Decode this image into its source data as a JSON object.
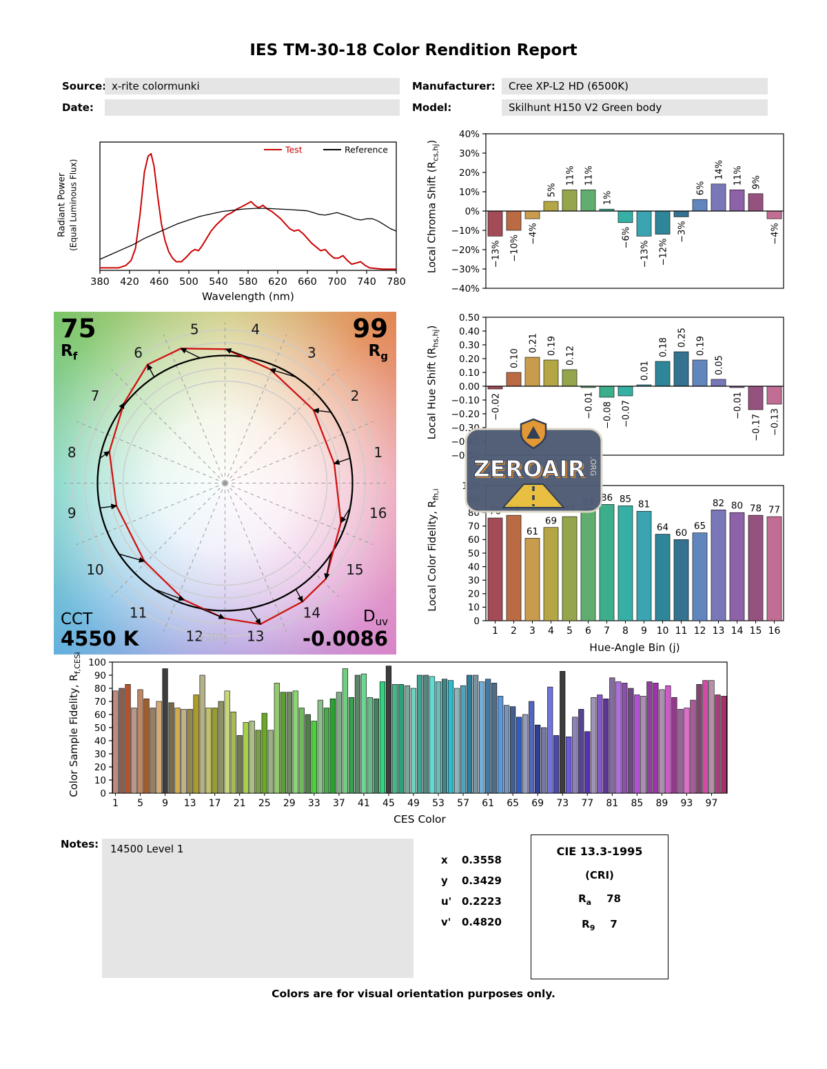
{
  "title": "IES TM-30-18 Color Rendition Report",
  "header": {
    "source_label": "Source:",
    "source_value": "x-rite colormunki",
    "date_label": "Date:",
    "date_value": "",
    "manufacturer_label": "Manufacturer:",
    "manufacturer_value": "Cree XP-L2 HD (6500K)",
    "model_label": "Model:",
    "model_value": "Skilhunt H150 V2 Green body"
  },
  "bin_colors": [
    "#a34b57",
    "#bb6b43",
    "#c89b4d",
    "#b4a545",
    "#94a54b",
    "#5fae70",
    "#3dae8c",
    "#36b0a4",
    "#3aa5b0",
    "#2f8699",
    "#33738f",
    "#6086bd",
    "#7a77b8",
    "#8e62a8",
    "#96527f",
    "#c26d93"
  ],
  "chart_data": [
    {
      "id": "spd",
      "type": "line",
      "xlabel": "Wavelength (nm)",
      "ylabel1": "Radiant Power",
      "ylabel2": "(Equal Luminous Flux)",
      "xlim": [
        380,
        780
      ],
      "xticks": [
        380,
        420,
        460,
        500,
        540,
        580,
        620,
        660,
        700,
        740,
        780
      ],
      "series": [
        {
          "name": "Test",
          "color": "#cc0000",
          "width": 2,
          "points": [
            [
              380,
              0.02
            ],
            [
              395,
              0.02
            ],
            [
              405,
              0.02
            ],
            [
              415,
              0.04
            ],
            [
              422,
              0.08
            ],
            [
              428,
              0.18
            ],
            [
              434,
              0.45
            ],
            [
              440,
              0.8
            ],
            [
              445,
              0.93
            ],
            [
              449,
              0.95
            ],
            [
              453,
              0.85
            ],
            [
              458,
              0.6
            ],
            [
              463,
              0.38
            ],
            [
              468,
              0.24
            ],
            [
              473,
              0.15
            ],
            [
              478,
              0.1
            ],
            [
              483,
              0.07
            ],
            [
              490,
              0.07
            ],
            [
              497,
              0.11
            ],
            [
              503,
              0.15
            ],
            [
              508,
              0.17
            ],
            [
              513,
              0.16
            ],
            [
              518,
              0.2
            ],
            [
              524,
              0.26
            ],
            [
              530,
              0.32
            ],
            [
              537,
              0.37
            ],
            [
              544,
              0.41
            ],
            [
              551,
              0.45
            ],
            [
              558,
              0.47
            ],
            [
              565,
              0.5
            ],
            [
              572,
              0.52
            ],
            [
              578,
              0.54
            ],
            [
              584,
              0.56
            ],
            [
              589,
              0.53
            ],
            [
              594,
              0.51
            ],
            [
              600,
              0.53
            ],
            [
              606,
              0.5
            ],
            [
              612,
              0.48
            ],
            [
              618,
              0.45
            ],
            [
              624,
              0.42
            ],
            [
              630,
              0.38
            ],
            [
              636,
              0.34
            ],
            [
              642,
              0.32
            ],
            [
              648,
              0.33
            ],
            [
              654,
              0.3
            ],
            [
              660,
              0.26
            ],
            [
              666,
              0.22
            ],
            [
              672,
              0.19
            ],
            [
              678,
              0.16
            ],
            [
              684,
              0.17
            ],
            [
              690,
              0.13
            ],
            [
              696,
              0.1
            ],
            [
              702,
              0.1
            ],
            [
              708,
              0.12
            ],
            [
              714,
              0.08
            ],
            [
              720,
              0.05
            ],
            [
              726,
              0.06
            ],
            [
              732,
              0.07
            ],
            [
              738,
              0.04
            ],
            [
              744,
              0.02
            ],
            [
              752,
              0.015
            ],
            [
              762,
              0.01
            ],
            [
              772,
              0.01
            ],
            [
              780,
              0.01
            ]
          ]
        },
        {
          "name": "Reference",
          "color": "#000000",
          "width": 1.3,
          "points": [
            [
              380,
              0.09
            ],
            [
              395,
              0.13
            ],
            [
              410,
              0.17
            ],
            [
              425,
              0.21
            ],
            [
              440,
              0.26
            ],
            [
              455,
              0.3
            ],
            [
              470,
              0.34
            ],
            [
              485,
              0.38
            ],
            [
              500,
              0.41
            ],
            [
              515,
              0.44
            ],
            [
              530,
              0.46
            ],
            [
              545,
              0.48
            ],
            [
              560,
              0.49
            ],
            [
              575,
              0.5
            ],
            [
              590,
              0.505
            ],
            [
              605,
              0.505
            ],
            [
              620,
              0.5
            ],
            [
              635,
              0.495
            ],
            [
              650,
              0.49
            ],
            [
              660,
              0.485
            ],
            [
              668,
              0.47
            ],
            [
              676,
              0.455
            ],
            [
              684,
              0.45
            ],
            [
              692,
              0.46
            ],
            [
              700,
              0.47
            ],
            [
              708,
              0.455
            ],
            [
              716,
              0.44
            ],
            [
              724,
              0.42
            ],
            [
              732,
              0.41
            ],
            [
              740,
              0.42
            ],
            [
              748,
              0.42
            ],
            [
              756,
              0.4
            ],
            [
              764,
              0.37
            ],
            [
              772,
              0.34
            ],
            [
              780,
              0.32
            ]
          ]
        }
      ]
    },
    {
      "id": "chroma_shift",
      "type": "bar",
      "ylabel_pre": "Local Chroma Shift (R",
      "ylabel_sub": "cs,hj",
      "ylabel_post": ")",
      "ylim": [
        -40,
        40
      ],
      "ytick_step": 10,
      "unit": "%",
      "values": [
        -13,
        -10,
        -4,
        5,
        11,
        11,
        1,
        -6,
        -13,
        -12,
        -3,
        6,
        14,
        11,
        9,
        -4
      ]
    },
    {
      "id": "hue_shift",
      "type": "bar",
      "ylabel_pre": "Local Hue Shift (R",
      "ylabel_sub": "hs,hj",
      "ylabel_post": ")",
      "ylim": [
        -0.5,
        0.5
      ],
      "ytick_step": 0.1,
      "values": [
        -0.02,
        0.1,
        0.21,
        0.19,
        0.12,
        -0.01,
        -0.08,
        -0.07,
        0.01,
        0.18,
        0.25,
        0.19,
        0.05,
        -0.01,
        -0.17,
        -0.13
      ]
    },
    {
      "id": "local_fidelity",
      "type": "bar",
      "ylabel_pre": "Local Color Fidelity, R",
      "ylabel_sub": "fh,i",
      "ylabel_post": "",
      "ylim": [
        0,
        100
      ],
      "ytick_step": 10,
      "xlabel": "Hue-Angle Bin (j)",
      "xticks": [
        1,
        2,
        3,
        4,
        5,
        6,
        7,
        8,
        9,
        10,
        11,
        12,
        13,
        14,
        15,
        16
      ],
      "values": [
        76,
        78,
        61,
        69,
        77,
        83,
        86,
        85,
        81,
        64,
        60,
        65,
        82,
        80,
        78,
        77
      ]
    },
    {
      "id": "ces",
      "type": "bar",
      "ylabel_pre": "Color Sample Fidelity, R",
      "ylabel_sub": "f,CESi",
      "ylabel_post": "",
      "ylim": [
        0,
        100
      ],
      "ytick_step": 10,
      "xlabel": "CES Color",
      "xticks": [
        1,
        5,
        9,
        13,
        17,
        21,
        25,
        29,
        33,
        37,
        41,
        45,
        49,
        53,
        57,
        61,
        65,
        69,
        73,
        77,
        81,
        85,
        89,
        93,
        97
      ],
      "values": [
        78,
        80,
        83,
        65,
        79,
        72,
        65,
        70,
        95,
        69,
        65,
        64,
        64,
        75,
        90,
        65,
        65,
        70,
        78,
        62,
        44,
        54,
        55,
        48,
        61,
        48,
        84,
        77,
        77,
        78,
        65,
        60,
        55,
        71,
        65,
        72,
        77,
        95,
        73,
        90,
        91,
        73,
        72,
        85,
        97,
        83,
        83,
        82,
        80,
        90,
        90,
        89,
        85,
        87,
        86,
        80,
        82,
        90,
        90,
        85,
        87,
        84,
        74,
        67,
        66,
        58,
        60,
        70,
        52,
        50,
        81,
        44,
        93,
        43,
        58,
        64,
        47,
        73,
        75,
        72,
        88,
        85,
        84,
        80,
        75,
        74,
        85,
        84,
        79,
        82,
        73,
        64,
        65,
        71,
        83,
        86,
        86,
        75,
        74
      ]
    }
  ],
  "cvg": {
    "rf_value": "75",
    "rf_label": "R",
    "rf_sub": "f",
    "rg_value": "99",
    "rg_label": "R",
    "rg_sub": "g",
    "cct_label": "CCT",
    "cct_value": "4550 K",
    "duv_label": "D",
    "duv_sub": "uv",
    "duv_value": "-0.0086",
    "ring_label": "+20%",
    "bin_numbers": [
      "1",
      "2",
      "3",
      "4",
      "5",
      "6",
      "7",
      "8",
      "9",
      "10",
      "11",
      "12",
      "13",
      "14",
      "15",
      "16"
    ]
  },
  "watermark": {
    "brand": "ZEROAIR",
    "org": ".ORG"
  },
  "notes": {
    "label": "Notes:",
    "value": "14500 Level 1"
  },
  "chromaticity": {
    "rows": [
      {
        "label": "x",
        "value": "0.3558"
      },
      {
        "label": "y",
        "value": "0.3429"
      },
      {
        "label": "u'",
        "value": "0.2223"
      },
      {
        "label": "v'",
        "value": "0.4820"
      }
    ]
  },
  "cri": {
    "title": "CIE 13.3-1995",
    "subtitle": "(CRI)",
    "ra_label": "R",
    "ra_sub": "a",
    "ra_value": "78",
    "r9_label": "R",
    "r9_sub": "9",
    "r9_value": "7"
  },
  "footer": "Colors are for visual orientation purposes only."
}
